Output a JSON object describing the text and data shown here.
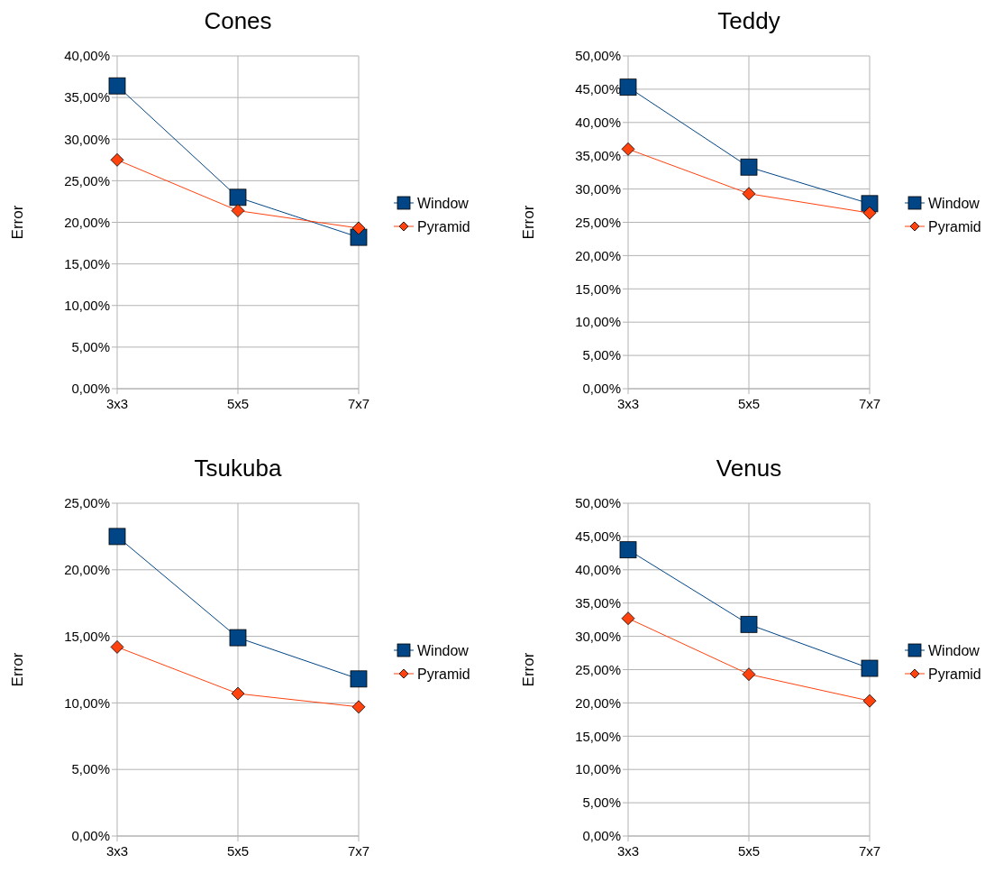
{
  "chart_data": [
    {
      "type": "line",
      "title": "Cones",
      "ylabel": "Error",
      "categories": [
        "3x3",
        "5x5",
        "7x7"
      ],
      "ylim": [
        0,
        40
      ],
      "yticks": [
        {
          "value": 0,
          "label": "0,00%"
        },
        {
          "value": 5,
          "label": "5,00%"
        },
        {
          "value": 10,
          "label": "10,00%"
        },
        {
          "value": 15,
          "label": "15,00%"
        },
        {
          "value": 20,
          "label": "20,00%"
        },
        {
          "value": 25,
          "label": "25,00%"
        },
        {
          "value": 30,
          "label": "30,00%"
        },
        {
          "value": 35,
          "label": "35,00%"
        },
        {
          "value": 40,
          "label": "40,00%"
        }
      ],
      "grid": true,
      "legend": "right",
      "series": [
        {
          "name": "Window",
          "color": "#004586",
          "marker": "square",
          "values": [
            36.4,
            23.0,
            18.2
          ]
        },
        {
          "name": "Pyramid",
          "color": "#ff420e",
          "marker": "diamond",
          "values": [
            27.5,
            21.4,
            19.3
          ]
        }
      ]
    },
    {
      "type": "line",
      "title": "Teddy",
      "ylabel": "Error",
      "categories": [
        "3x3",
        "5x5",
        "7x7"
      ],
      "ylim": [
        0,
        50
      ],
      "yticks": [
        {
          "value": 0,
          "label": "0,00%"
        },
        {
          "value": 5,
          "label": "5,00%"
        },
        {
          "value": 10,
          "label": "10,00%"
        },
        {
          "value": 15,
          "label": "15,00%"
        },
        {
          "value": 20,
          "label": "20,00%"
        },
        {
          "value": 25,
          "label": "25,00%"
        },
        {
          "value": 30,
          "label": "30,00%"
        },
        {
          "value": 35,
          "label": "35,00%"
        },
        {
          "value": 40,
          "label": "40,00%"
        },
        {
          "value": 45,
          "label": "45,00%"
        },
        {
          "value": 50,
          "label": "50,00%"
        }
      ],
      "grid": true,
      "legend": "right",
      "series": [
        {
          "name": "Window",
          "color": "#004586",
          "marker": "square",
          "values": [
            45.3,
            33.3,
            27.8
          ]
        },
        {
          "name": "Pyramid",
          "color": "#ff420e",
          "marker": "diamond",
          "values": [
            36.0,
            29.3,
            26.4
          ]
        }
      ]
    },
    {
      "type": "line",
      "title": "Tsukuba",
      "ylabel": "Error",
      "categories": [
        "3x3",
        "5x5",
        "7x7"
      ],
      "ylim": [
        0,
        25
      ],
      "yticks": [
        {
          "value": 0,
          "label": "0,00%"
        },
        {
          "value": 5,
          "label": "5,00%"
        },
        {
          "value": 10,
          "label": "10,00%"
        },
        {
          "value": 15,
          "label": "15,00%"
        },
        {
          "value": 20,
          "label": "20,00%"
        },
        {
          "value": 25,
          "label": "25,00%"
        }
      ],
      "grid": true,
      "legend": "right",
      "series": [
        {
          "name": "Window",
          "color": "#004586",
          "marker": "square",
          "values": [
            22.5,
            14.9,
            11.8
          ]
        },
        {
          "name": "Pyramid",
          "color": "#ff420e",
          "marker": "diamond",
          "values": [
            14.2,
            10.7,
            9.7
          ]
        }
      ]
    },
    {
      "type": "line",
      "title": "Venus",
      "ylabel": "Error",
      "categories": [
        "3x3",
        "5x5",
        "7x7"
      ],
      "ylim": [
        0,
        50
      ],
      "yticks": [
        {
          "value": 0,
          "label": "0,00%"
        },
        {
          "value": 5,
          "label": "5,00%"
        },
        {
          "value": 10,
          "label": "10,00%"
        },
        {
          "value": 15,
          "label": "15,00%"
        },
        {
          "value": 20,
          "label": "20,00%"
        },
        {
          "value": 25,
          "label": "25,00%"
        },
        {
          "value": 30,
          "label": "30,00%"
        },
        {
          "value": 35,
          "label": "35,00%"
        },
        {
          "value": 40,
          "label": "40,00%"
        },
        {
          "value": 45,
          "label": "45,00%"
        },
        {
          "value": 50,
          "label": "50,00%"
        }
      ],
      "grid": true,
      "legend": "right",
      "series": [
        {
          "name": "Window",
          "color": "#004586",
          "marker": "square",
          "values": [
            43.0,
            31.8,
            25.2
          ]
        },
        {
          "name": "Pyramid",
          "color": "#ff420e",
          "marker": "diamond",
          "values": [
            32.7,
            24.3,
            20.3
          ]
        }
      ]
    }
  ]
}
